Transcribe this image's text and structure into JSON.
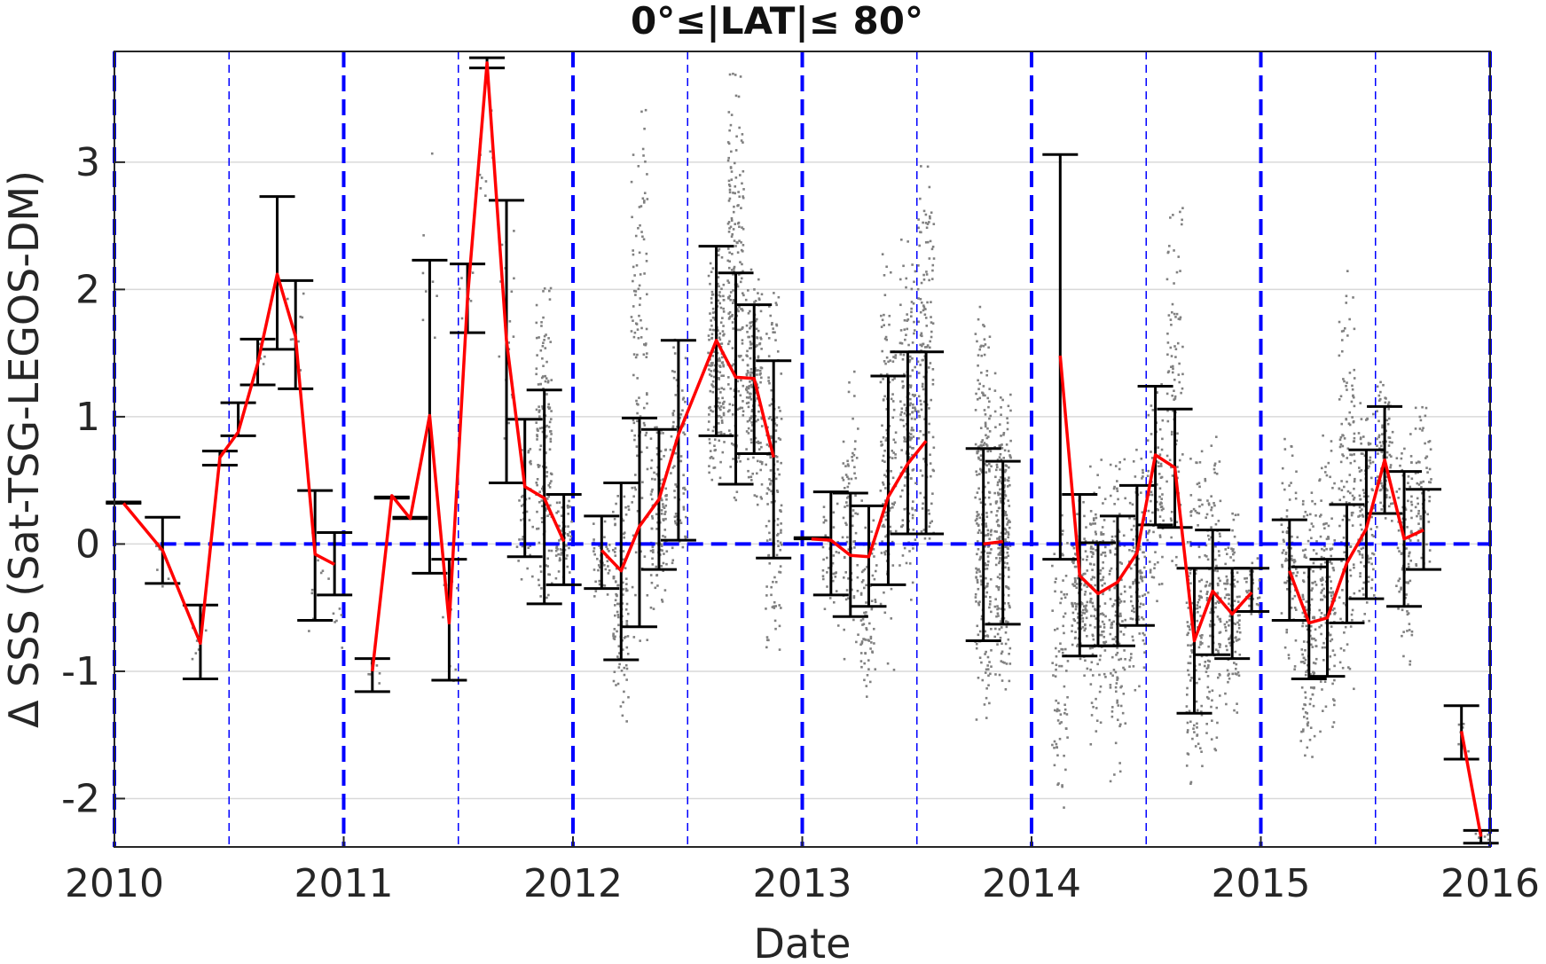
{
  "chart_data": {
    "type": "scatter",
    "title": "0°≤|LAT|≤ 80°",
    "xlabel": "Date",
    "ylabel": "Δ SSS (Sat-TSG-LEGOS-DM)",
    "xlim": [
      2010,
      2016
    ],
    "ylim": [
      -2.38,
      3.87
    ],
    "x_ticks": [
      2010,
      2011,
      2012,
      2013,
      2014,
      2015,
      2016
    ],
    "x_tick_labels": [
      "2010",
      "2011",
      "2012",
      "2013",
      "2014",
      "2015",
      "2016"
    ],
    "y_ticks": [
      -2,
      -1,
      0,
      1,
      2,
      3
    ],
    "y_tick_labels": [
      "-2",
      "-1",
      "0",
      "1",
      "2",
      "3"
    ],
    "grid": true,
    "reference_line": 0,
    "colors": {
      "mean_line": "#ff0000",
      "error_bars": "#000000",
      "points": "#808080",
      "guides": "#0000ff",
      "grid": "#d9d9d9"
    },
    "series": [
      {
        "x": [
          2010.04,
          2010.21,
          2010.375,
          2010.46,
          2010.54,
          2010.625,
          2010.71,
          2010.79,
          2010.875,
          2010.96
        ],
        "y": [
          0.32,
          -0.05,
          -0.78,
          0.68,
          0.88,
          1.42,
          2.12,
          1.63,
          -0.08,
          -0.16
        ],
        "lower": [
          0.32,
          -0.31,
          -1.06,
          0.62,
          0.85,
          1.25,
          1.53,
          1.22,
          -0.6,
          -0.4
        ],
        "upper": [
          0.33,
          0.21,
          -0.48,
          0.73,
          1.11,
          1.61,
          2.73,
          2.07,
          0.42,
          0.09
        ]
      },
      {
        "x": [
          2011.125,
          2011.21,
          2011.29,
          2011.375,
          2011.46,
          2011.54,
          2011.625,
          2011.71,
          2011.79,
          2011.875,
          2011.96
        ],
        "y": [
          -1.0,
          0.38,
          0.2,
          1.01,
          -0.62,
          1.93,
          3.78,
          1.6,
          0.45,
          0.36,
          0.02
        ],
        "lower": [
          -1.16,
          0.36,
          0.2,
          -0.23,
          -1.07,
          1.66,
          3.74,
          0.48,
          -0.1,
          -0.47,
          -0.32
        ],
        "upper": [
          -0.9,
          0.37,
          0.21,
          2.23,
          -0.12,
          2.2,
          3.82,
          2.7,
          0.98,
          1.21,
          0.39
        ]
      },
      {
        "x": [
          2012.125,
          2012.21,
          2012.29,
          2012.375,
          2012.46,
          2012.625,
          2012.71,
          2012.79,
          2012.875
        ],
        "y": [
          -0.05,
          -0.21,
          0.14,
          0.35,
          0.86,
          1.6,
          1.31,
          1.3,
          0.68
        ],
        "lower": [
          -0.35,
          -0.91,
          -0.65,
          -0.2,
          0.03,
          0.85,
          0.47,
          0.71,
          -0.11
        ],
        "upper": [
          0.22,
          0.48,
          0.99,
          0.9,
          1.6,
          2.34,
          2.13,
          1.88,
          1.44
        ]
      },
      {
        "x": [
          2013.04,
          2013.125,
          2013.21,
          2013.29,
          2013.375,
          2013.46,
          2013.54
        ],
        "y": [
          0.04,
          0.03,
          -0.09,
          -0.1,
          0.37,
          0.63,
          0.81
        ],
        "lower": [
          0.04,
          -0.4,
          -0.57,
          -0.49,
          -0.32,
          0.08,
          0.08
        ],
        "upper": [
          0.05,
          0.41,
          0.4,
          0.3,
          1.32,
          1.51,
          1.51
        ]
      },
      {
        "x": [
          2013.79,
          2013.875
        ],
        "y": [
          0.0,
          0.02
        ],
        "lower": [
          -0.76,
          -0.63
        ],
        "upper": [
          0.75,
          0.65
        ]
      },
      {
        "x": [
          2014.125,
          2014.21,
          2014.29,
          2014.375,
          2014.46,
          2014.54,
          2014.625,
          2014.71,
          2014.79,
          2014.875,
          2014.96
        ],
        "y": [
          1.48,
          -0.25,
          -0.39,
          -0.3,
          -0.07,
          0.7,
          0.6,
          -0.76,
          -0.37,
          -0.55,
          -0.38
        ],
        "lower": [
          -0.12,
          -0.88,
          -0.8,
          -0.8,
          -0.64,
          0.15,
          0.13,
          -1.33,
          -0.87,
          -0.9,
          -0.53
        ],
        "upper": [
          3.06,
          0.39,
          0.01,
          0.22,
          0.46,
          1.24,
          1.06,
          -0.19,
          0.11,
          -0.19,
          -0.19
        ]
      },
      {
        "x": [
          2015.125,
          2015.21,
          2015.29,
          2015.375,
          2015.46,
          2015.54,
          2015.625,
          2015.71
        ],
        "y": [
          -0.21,
          -0.62,
          -0.58,
          -0.15,
          0.12,
          0.66,
          0.04,
          0.11
        ],
        "lower": [
          -0.6,
          -1.06,
          -1.04,
          -0.62,
          -0.43,
          0.24,
          -0.49,
          -0.2
        ],
        "upper": [
          0.19,
          -0.18,
          -0.12,
          0.31,
          0.74,
          1.08,
          0.57,
          0.43
        ]
      },
      {
        "x": [
          2015.875,
          2015.96
        ],
        "y": [
          -1.47,
          -2.3
        ],
        "lower": [
          -1.69,
          -2.35
        ],
        "upper": [
          -1.27,
          -2.25
        ]
      }
    ],
    "point_clouds": [
      {
        "x": 2010.04,
        "lo": 0.31,
        "hi": 0.34,
        "n": 6
      },
      {
        "x": 2010.21,
        "lo": -0.5,
        "hi": 0.2,
        "n": 6
      },
      {
        "x": 2010.375,
        "lo": -1.0,
        "hi": -0.5,
        "n": 8
      },
      {
        "x": 2010.625,
        "lo": 1.3,
        "hi": 1.6,
        "n": 6
      },
      {
        "x": 2010.79,
        "lo": 1.2,
        "hi": 2.2,
        "n": 8
      },
      {
        "x": 2010.875,
        "lo": -0.8,
        "hi": 0.4,
        "n": 10
      },
      {
        "x": 2010.96,
        "lo": -1.1,
        "hi": 0.1,
        "n": 8
      },
      {
        "x": 2011.125,
        "lo": -1.15,
        "hi": -0.9,
        "n": 6
      },
      {
        "x": 2011.375,
        "lo": 0.2,
        "hi": 3.35,
        "n": 8
      },
      {
        "x": 2011.46,
        "lo": -1.2,
        "hi": -0.1,
        "n": 10
      },
      {
        "x": 2011.54,
        "lo": 1.6,
        "hi": 2.2,
        "n": 8
      },
      {
        "x": 2011.625,
        "lo": 2.6,
        "hi": 3.6,
        "n": 10
      },
      {
        "x": 2011.71,
        "lo": 0.5,
        "hi": 2.8,
        "n": 18
      },
      {
        "x": 2011.79,
        "lo": -0.4,
        "hi": 1.0,
        "n": 40
      },
      {
        "x": 2011.875,
        "lo": -0.5,
        "hi": 2.1,
        "n": 150
      },
      {
        "x": 2011.96,
        "lo": -0.3,
        "hi": 0.4,
        "n": 60
      },
      {
        "x": 2012.125,
        "lo": -0.5,
        "hi": 0.25,
        "n": 40
      },
      {
        "x": 2012.21,
        "lo": -1.5,
        "hi": 0.5,
        "n": 110
      },
      {
        "x": 2012.29,
        "lo": -0.9,
        "hi": 3.6,
        "n": 120
      },
      {
        "x": 2012.375,
        "lo": -0.6,
        "hi": 1.0,
        "n": 120
      },
      {
        "x": 2012.46,
        "lo": -0.2,
        "hi": 1.7,
        "n": 80
      },
      {
        "x": 2012.625,
        "lo": 0.5,
        "hi": 2.4,
        "n": 180
      },
      {
        "x": 2012.71,
        "lo": 0.3,
        "hi": 3.8,
        "n": 200
      },
      {
        "x": 2012.79,
        "lo": 0.3,
        "hi": 2.2,
        "n": 160
      },
      {
        "x": 2012.875,
        "lo": -1.0,
        "hi": 2.0,
        "n": 140
      },
      {
        "x": 2013.125,
        "lo": -0.8,
        "hi": 0.5,
        "n": 40
      },
      {
        "x": 2013.21,
        "lo": -1.0,
        "hi": 1.5,
        "n": 80
      },
      {
        "x": 2013.29,
        "lo": -1.2,
        "hi": 0.4,
        "n": 80
      },
      {
        "x": 2013.375,
        "lo": -1.0,
        "hi": 2.5,
        "n": 120
      },
      {
        "x": 2013.46,
        "lo": -0.5,
        "hi": 2.4,
        "n": 160
      },
      {
        "x": 2013.54,
        "lo": -0.1,
        "hi": 3.0,
        "n": 140
      },
      {
        "x": 2013.79,
        "lo": -1.4,
        "hi": 1.9,
        "n": 240
      },
      {
        "x": 2013.875,
        "lo": -1.2,
        "hi": 1.4,
        "n": 240
      },
      {
        "x": 2014.125,
        "lo": -2.2,
        "hi": 0.4,
        "n": 80
      },
      {
        "x": 2014.21,
        "lo": -1.1,
        "hi": 0.4,
        "n": 120
      },
      {
        "x": 2014.29,
        "lo": -1.6,
        "hi": 0.7,
        "n": 130
      },
      {
        "x": 2014.375,
        "lo": -1.9,
        "hi": 0.7,
        "n": 130
      },
      {
        "x": 2014.46,
        "lo": -1.2,
        "hi": 0.8,
        "n": 110
      },
      {
        "x": 2014.54,
        "lo": -0.5,
        "hi": 1.3,
        "n": 90
      },
      {
        "x": 2014.625,
        "lo": -0.2,
        "hi": 2.8,
        "n": 90
      },
      {
        "x": 2014.71,
        "lo": -2.0,
        "hi": 0.8,
        "n": 130
      },
      {
        "x": 2014.79,
        "lo": -1.7,
        "hi": 0.9,
        "n": 130
      },
      {
        "x": 2014.875,
        "lo": -1.4,
        "hi": 0.3,
        "n": 110
      },
      {
        "x": 2014.96,
        "lo": -0.6,
        "hi": -0.1,
        "n": 30
      },
      {
        "x": 2015.125,
        "lo": -1.0,
        "hi": 0.9,
        "n": 90
      },
      {
        "x": 2015.21,
        "lo": -1.8,
        "hi": 0.5,
        "n": 130
      },
      {
        "x": 2015.29,
        "lo": -1.5,
        "hi": 0.9,
        "n": 130
      },
      {
        "x": 2015.375,
        "lo": -1.2,
        "hi": 2.2,
        "n": 130
      },
      {
        "x": 2015.46,
        "lo": -0.7,
        "hi": 1.3,
        "n": 110
      },
      {
        "x": 2015.54,
        "lo": 0.1,
        "hi": 1.3,
        "n": 100
      },
      {
        "x": 2015.625,
        "lo": -1.0,
        "hi": 0.9,
        "n": 100
      },
      {
        "x": 2015.71,
        "lo": -0.3,
        "hi": 1.1,
        "n": 70
      },
      {
        "x": 2015.875,
        "lo": -1.8,
        "hi": -1.3,
        "n": 6
      },
      {
        "x": 2015.96,
        "lo": -2.35,
        "hi": -2.25,
        "n": 6
      }
    ]
  }
}
